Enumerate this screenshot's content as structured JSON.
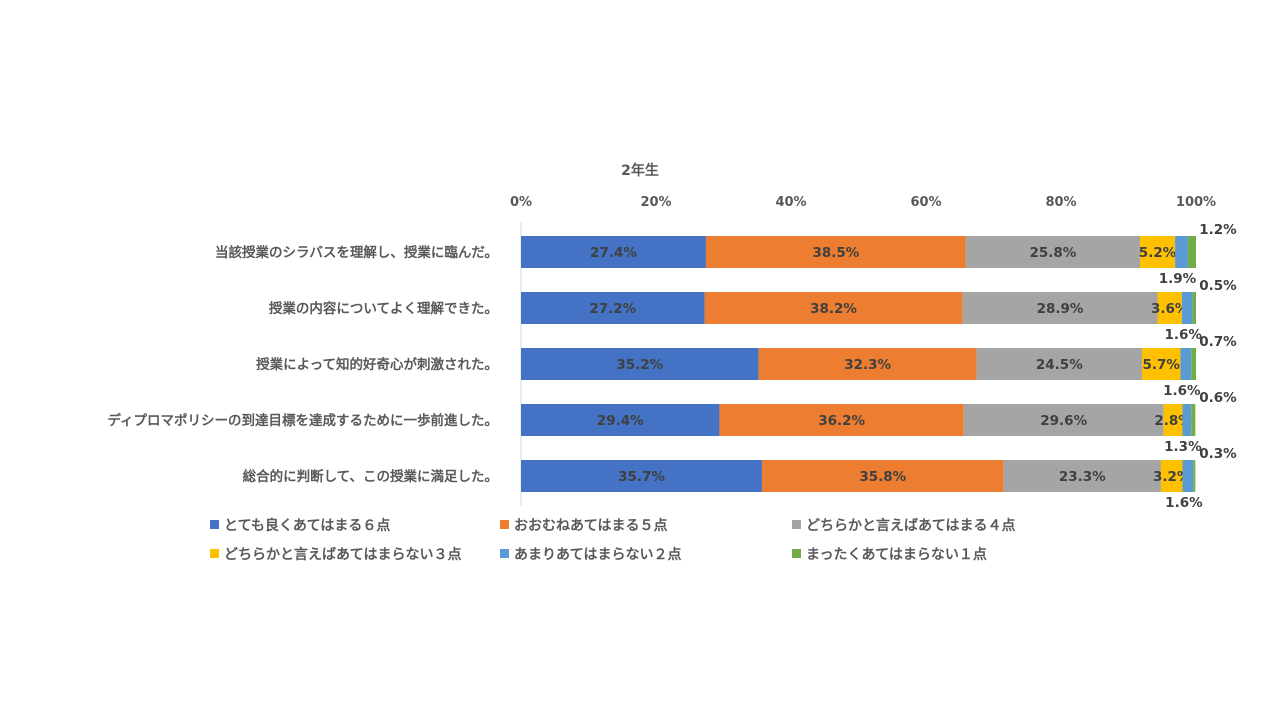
{
  "chart_data": {
    "type": "bar",
    "orientation": "horizontal",
    "stacked": "percent",
    "title": "2年生",
    "xlim": [
      0,
      100
    ],
    "x_ticks": [
      "0%",
      "20%",
      "40%",
      "60%",
      "80%",
      "100%"
    ],
    "x_tick_values": [
      0,
      20,
      40,
      60,
      80,
      100
    ],
    "categories": [
      "当該授業のシラバスを理解し、授業に臨んだ。",
      "授業の内容についてよく理解できた。",
      "授業によって知的好奇心が刺激された。",
      "ディプロマポリシーの到達目標を達成するために一歩前進した。",
      "総合的に判断して、この授業に満足した。"
    ],
    "series": [
      {
        "name": "とても良くあてはまる６点",
        "color": "#4472C4",
        "values": [
          27.4,
          27.2,
          35.2,
          29.4,
          35.7
        ],
        "labels": [
          "27.4%",
          "27.2%",
          "35.2%",
          "29.4%",
          "35.7%"
        ]
      },
      {
        "name": "おおむねあてはまる５点",
        "color": "#ED7D31",
        "values": [
          38.5,
          38.2,
          32.3,
          36.2,
          35.8
        ],
        "labels": [
          "38.5%",
          "38.2%",
          "32.3%",
          "36.2%",
          "35.8%"
        ]
      },
      {
        "name": "どちらかと言えばあてはまる４点",
        "color": "#A5A5A5",
        "values": [
          25.8,
          28.9,
          24.5,
          29.6,
          23.3
        ],
        "labels": [
          "25.8%",
          "28.9%",
          "24.5%",
          "29.6%",
          "23.3%"
        ]
      },
      {
        "name": "どちらかと言えばあてはまらない３点",
        "color": "#FFC000",
        "values": [
          5.2,
          3.6,
          5.7,
          2.8,
          3.2
        ],
        "labels": [
          "5.2%",
          "3.6%",
          "5.7%",
          "2.8%",
          "3.2%"
        ]
      },
      {
        "name": "あまりあてはまらない２点",
        "color": "#5B9BD5",
        "values": [
          1.9,
          1.6,
          1.6,
          1.3,
          1.6
        ],
        "labels": [
          "1.9%",
          "1.6%",
          "1.6%",
          "1.3%",
          "1.6%"
        ]
      },
      {
        "name": "まったくあてはまらない１点",
        "color": "#70AD47",
        "values": [
          1.2,
          0.5,
          0.7,
          0.6,
          0.3
        ],
        "labels": [
          "1.2%",
          "0.5%",
          "0.7%",
          "0.6%",
          "0.3%"
        ]
      }
    ],
    "grid": false,
    "legend_position": "bottom"
  }
}
